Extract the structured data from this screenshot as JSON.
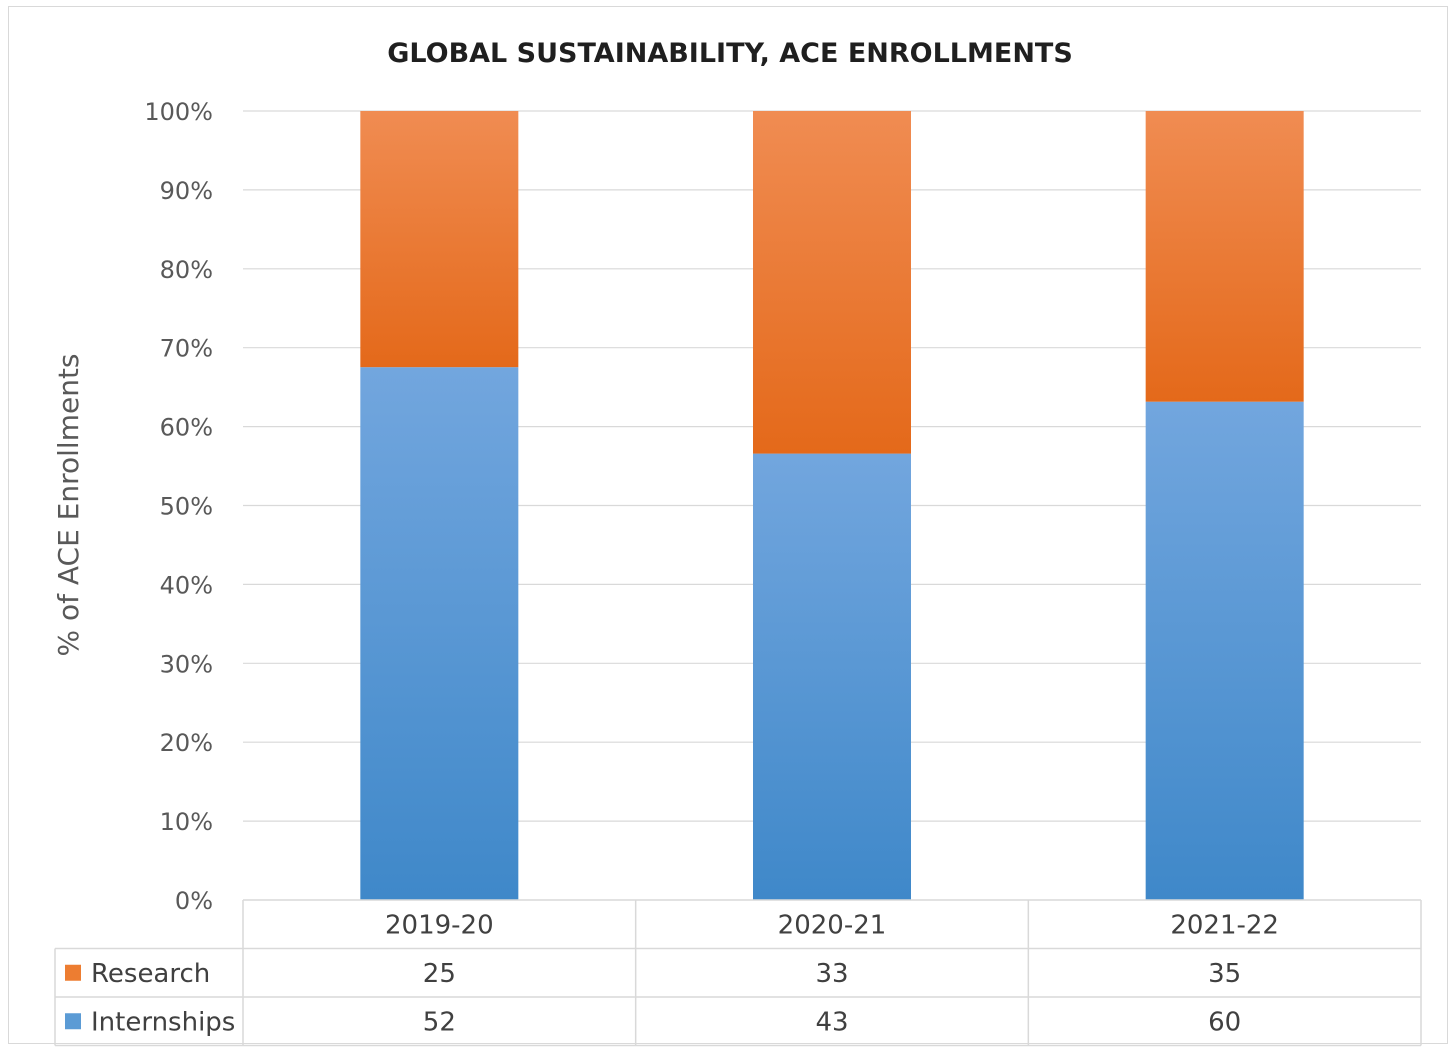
{
  "chart_data": {
    "type": "bar",
    "stacked": "percent",
    "title": "GLOBAL SUSTAINABILITY, ACE ENROLLMENTS",
    "xlabel": "",
    "ylabel": "% of ACE Enrollments",
    "ylim": [
      0,
      100
    ],
    "y_ticks": [
      "0%",
      "10%",
      "20%",
      "30%",
      "40%",
      "50%",
      "60%",
      "70%",
      "80%",
      "90%",
      "100%"
    ],
    "categories": [
      "2019-20",
      "2020-21",
      "2021-22"
    ],
    "series": [
      {
        "name": "Internships",
        "values": [
          52,
          43,
          60
        ],
        "color": "#5b9bd5"
      },
      {
        "name": "Research",
        "values": [
          25,
          33,
          35
        ],
        "color": "#ed7d31"
      }
    ],
    "data_table": true,
    "table_row_order": [
      "Research",
      "Internships"
    ],
    "grid": true
  }
}
